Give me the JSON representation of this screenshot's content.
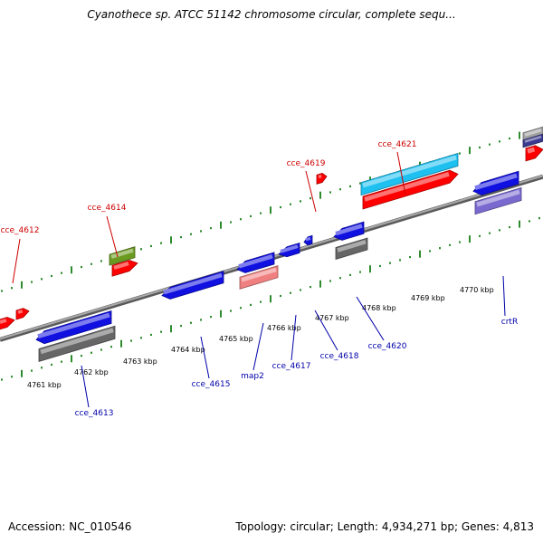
{
  "title": "Cyanothece sp. ATCC 51142 chromosome circular, complete sequ...",
  "footer": {
    "accession": "Accession: NC_010546",
    "topology": "Topology: circular; Length: 4,934,271 bp; Genes: 4,813"
  },
  "colors": {
    "backbone": "#8a8a8a",
    "tick": "#2e8b2e",
    "forward_label": "#cc0000",
    "reverse_label": "#0000aa",
    "forward_gene": "#ff0000",
    "reverse_gene": "#1010e0",
    "light_blue": "#1ec0f0",
    "olive": "#6a9a20",
    "gray": "#666666",
    "salmon": "#f08080",
    "lavender": "#7a6ad0"
  },
  "ticks": [
    "4761 kbp",
    "4762 kbp",
    "4763 kbp",
    "4764 kbp",
    "4765 kbp",
    "4766 kbp",
    "4767 kbp",
    "4768 kbp",
    "4769 kbp",
    "4770 kbp"
  ],
  "forward_labels": [
    "cce_4612",
    "cce_4614",
    "cce_4619",
    "cce_4621"
  ],
  "reverse_labels": [
    "cce_4613",
    "cce_4615",
    "map2",
    "cce_4617",
    "cce_4618",
    "cce_4620",
    "crtR"
  ]
}
